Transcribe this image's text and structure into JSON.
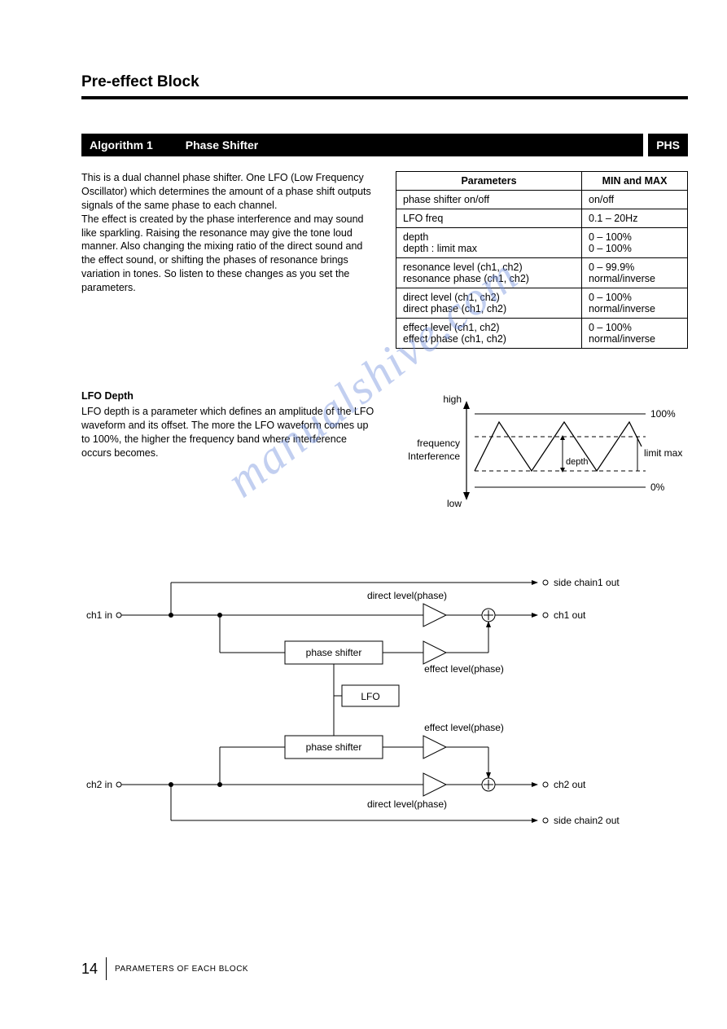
{
  "header": {
    "title": "Pre-effect Block"
  },
  "algorithm": {
    "number_label": "Algorithm 1",
    "name": "Phase Shifter",
    "code": "PHS"
  },
  "description": "This is a dual channel phase shifter. One LFO (Low Frequency Oscillator) which determines the amount of a phase shift outputs signals of the same phase to each channel.\nThe effect is created by the phase interference and may sound like sparkling. Raising the resonance may give the tone loud manner. Also changing the mixing ratio of the direct sound and the effect sound, or shifting the phases of resonance brings variation in tones. So listen to these changes as you set the parameters.",
  "param_table": {
    "headers": [
      "Parameters",
      "MIN and MAX"
    ],
    "rows": [
      [
        [
          "phase shifter on/off"
        ],
        [
          "on/off"
        ]
      ],
      [
        [
          "LFO freq"
        ],
        [
          "0.1 – 20Hz"
        ]
      ],
      [
        [
          "depth",
          "depth : limit max"
        ],
        [
          "0 – 100%",
          "0 – 100%"
        ]
      ],
      [
        [
          "resonance level (ch1, ch2)",
          "resonance phase (ch1, ch2)"
        ],
        [
          "0 – 99.9%",
          "normal/inverse"
        ]
      ],
      [
        [
          "direct level (ch1, ch2)",
          "direct phase (ch1, ch2)"
        ],
        [
          "0 – 100%",
          "normal/inverse"
        ]
      ],
      [
        [
          "effect level (ch1, ch2)",
          "effect phase (ch1, ch2)"
        ],
        [
          "0 – 100%",
          "normal/inverse"
        ]
      ]
    ]
  },
  "lfo_depth": {
    "heading": "LFO Depth",
    "text": "LFO depth is a parameter which defines an amplitude of the LFO waveform and its offset. The more the LFO waveform comes up to 100%, the higher the frequency band where interference occurs becomes.",
    "diagram": {
      "y_axis_top": "high",
      "y_axis_bottom": "low",
      "y_axis_label_top": "frequency",
      "y_axis_label_bottom": "Interference",
      "right_top": "100%",
      "right_bottom": "0%",
      "right_mid": "limit max",
      "inside_label": "depth",
      "line_color": "#000000",
      "dash_color": "#000000",
      "background": "#ffffff"
    }
  },
  "block_diagram": {
    "labels": {
      "ch1_in": "ch1 in",
      "ch2_in": "ch2 in",
      "ch1_out": "ch1 out",
      "ch2_out": "ch2 out",
      "side1": "side chain1 out",
      "side2": "side chain2 out",
      "direct_level": "direct level(phase)",
      "effect_level": "effect level(phase)",
      "phase_shifter": "phase shifter",
      "lfo": "LFO"
    },
    "colors": {
      "stroke": "#000000",
      "fill": "#ffffff",
      "text": "#000000"
    }
  },
  "watermark": "manualshive.com",
  "footer": {
    "page_number": "14",
    "section": "PARAMETERS OF EACH BLOCK"
  }
}
